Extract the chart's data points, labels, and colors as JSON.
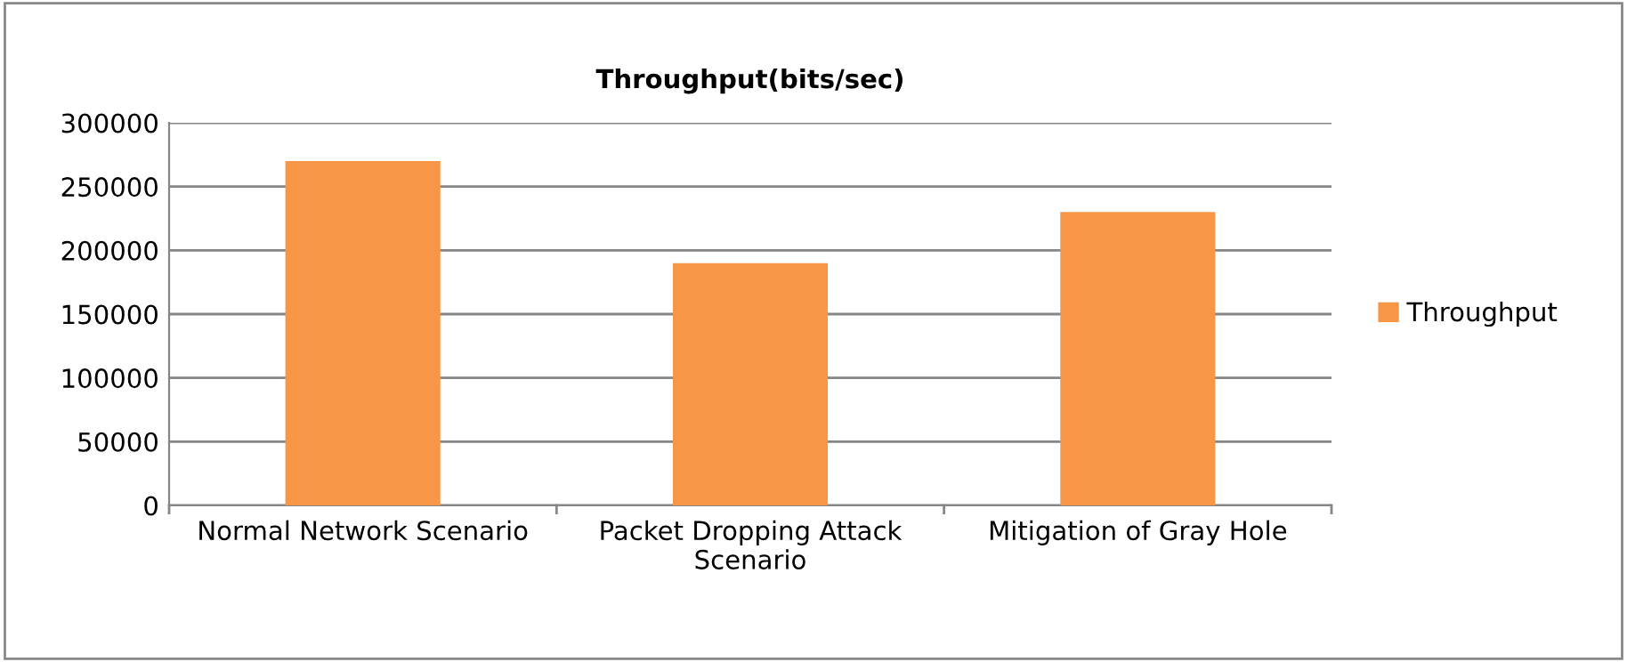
{
  "chart_data": {
    "type": "bar",
    "title": "Throughput(bits/sec)",
    "categories": [
      "Normal Network Scenario",
      "Packet Dropping Attack Scenario",
      "Mitigation of Gray Hole"
    ],
    "series": [
      {
        "name": "Throughput",
        "color": "#f79646",
        "values": [
          270000,
          190000,
          230000
        ]
      }
    ],
    "ylim": [
      0,
      300000
    ],
    "yticks": [
      0,
      50000,
      100000,
      150000,
      200000,
      250000,
      300000
    ],
    "grid": "y",
    "legend": "right"
  }
}
